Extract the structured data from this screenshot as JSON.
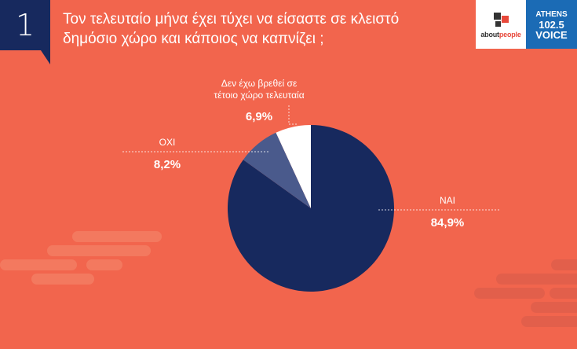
{
  "question": {
    "number": "1",
    "title": "Τον τελευταίο μήνα έχει τύχει να είσαστε σε κλειστό δημόσιο χώρο και κάποιος να καπνίζει ;"
  },
  "logos": {
    "aboutpeople": {
      "text_about": "about",
      "text_people": "people"
    },
    "athens_voice": {
      "line1": "ATHENS",
      "line2": "102.5",
      "line3": "VOICE"
    }
  },
  "colors": {
    "background": "#f2654d",
    "navy": "#17295e",
    "slate": "#4a5a8c",
    "white": "#ffffff"
  },
  "chart_data": {
    "type": "pie",
    "title": "Τον τελευταίο μήνα έχει τύχει να είσαστε σε κλειστό δημόσιο χώρο και κάποιος να καπνίζει ;",
    "slices": [
      {
        "label": "ΝΑΙ",
        "value": 84.9,
        "display": "84,9%",
        "color": "#17295e"
      },
      {
        "label": "ΟΧΙ",
        "value": 8.2,
        "display": "8,2%",
        "color": "#4a5a8c"
      },
      {
        "label_lines": [
          "Δεν έχω βρεθεί σε",
          "τέτοιο χώρο τελευταία"
        ],
        "value": 6.9,
        "display": "6,9%",
        "color": "#ffffff"
      }
    ]
  }
}
